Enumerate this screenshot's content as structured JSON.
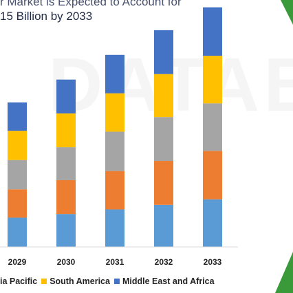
{
  "title_line1": "r Market is Expected to Account for",
  "title_line2": "15 Billion by 2033",
  "watermark": "DATABR",
  "chart_data": {
    "type": "bar",
    "stacked": true,
    "categories": [
      "2029",
      "2030",
      "2031",
      "2032",
      "2033"
    ],
    "series": [
      {
        "name": "",
        "color": "#5b9bd5",
        "values": [
          32,
          36,
          41,
          46,
          52
        ]
      },
      {
        "name": "",
        "color": "#ed7d31",
        "values": [
          31,
          37,
          42,
          48,
          53
        ]
      },
      {
        "name": "Asia Pacific",
        "color": "#a5a5a5",
        "values": [
          32,
          36,
          43,
          48,
          52
        ]
      },
      {
        "name": "South America",
        "color": "#ffc000",
        "values": [
          32,
          37,
          42,
          47,
          52
        ]
      },
      {
        "name": "Middle East and Africa",
        "color": "#4472c4",
        "values": [
          31,
          37,
          42,
          48,
          53
        ]
      }
    ],
    "legend_labels": [
      "ia Pacific",
      "South America",
      "Middle East and Africa"
    ],
    "legend_colors": [
      "#a5a5a5",
      "#ffc000",
      "#4472c4"
    ],
    "ylim": [
      0,
      270
    ],
    "grid": false,
    "legend_position": "bottom"
  }
}
